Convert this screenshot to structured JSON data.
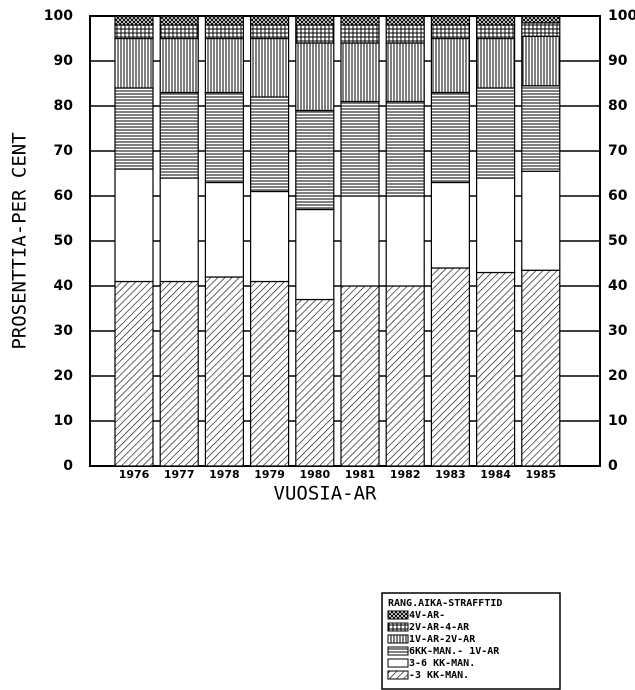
{
  "chart_data": {
    "type": "stacked_bar",
    "y_label": "PROSENTTIA-PER CENT",
    "x_label": "VUOSIA-AR",
    "legend_title": "RANG.AIKA-STRAFFTID",
    "categories": [
      "1976",
      "1977",
      "1978",
      "1979",
      "1980",
      "1981",
      "1982",
      "1983",
      "1984",
      "1985"
    ],
    "series": [
      {
        "name": "-3 KK-MAN.",
        "color": "#000",
        "pattern": "diagonal",
        "values": [
          41,
          41,
          42,
          41,
          37,
          40,
          40,
          44,
          43,
          43.5
        ]
      },
      {
        "name": "3-6 KK-MAN.",
        "color": "#000",
        "pattern": "none",
        "values": [
          25,
          23,
          21,
          20,
          20,
          20,
          20,
          19,
          21,
          22
        ]
      },
      {
        "name": "6KK-MAN.- 1V-AR",
        "color": "#000",
        "pattern": "horizontal",
        "values": [
          18,
          19,
          20,
          21,
          22,
          21,
          21,
          20,
          20,
          19
        ]
      },
      {
        "name": "1V-AR-2V-AR",
        "color": "#000",
        "pattern": "vertical",
        "values": [
          11,
          12,
          12,
          13,
          15,
          13,
          13,
          12,
          11,
          11
        ]
      },
      {
        "name": "2V-AR-4-AR",
        "color": "#000",
        "pattern": "grid",
        "values": [
          3,
          3,
          3,
          3,
          4,
          4,
          4,
          3,
          3,
          3
        ]
      },
      {
        "name": "4V-AR-",
        "color": "#000",
        "pattern": "cross",
        "values": [
          2,
          2,
          2,
          2,
          2,
          2,
          2,
          2,
          2,
          1.5
        ]
      }
    ],
    "ylim": [
      0,
      100
    ],
    "yticks": [
      0,
      10,
      20,
      30,
      40,
      50,
      60,
      70,
      80,
      90,
      100
    ],
    "grid": true
  }
}
